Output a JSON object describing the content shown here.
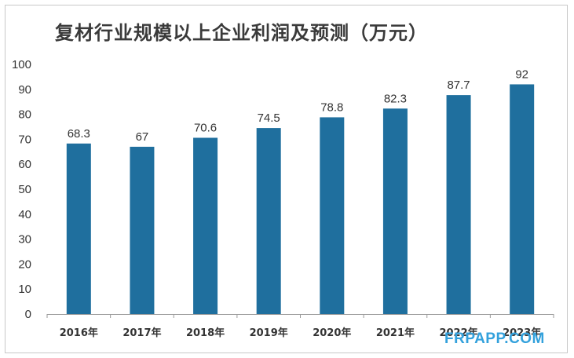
{
  "chart_data": {
    "type": "bar",
    "title": "复材行业规模以上企业利润及预测（万元）",
    "categories": [
      "2016年",
      "2017年",
      "2018年",
      "2019年",
      "2020年",
      "2021年",
      "2022年",
      "2023年"
    ],
    "values": [
      68.3,
      67,
      70.6,
      74.5,
      78.8,
      82.3,
      87.7,
      92
    ],
    "value_labels": [
      "68.3",
      "67",
      "70.6",
      "74.5",
      "78.8",
      "82.3",
      "87.7",
      "92"
    ],
    "ylim": [
      0,
      100
    ],
    "yticks": [
      0,
      10,
      20,
      30,
      40,
      50,
      60,
      70,
      80,
      90,
      100
    ],
    "grid": false,
    "bar_color": "#1f6f9e"
  },
  "watermark": "FRPAPP.COM"
}
